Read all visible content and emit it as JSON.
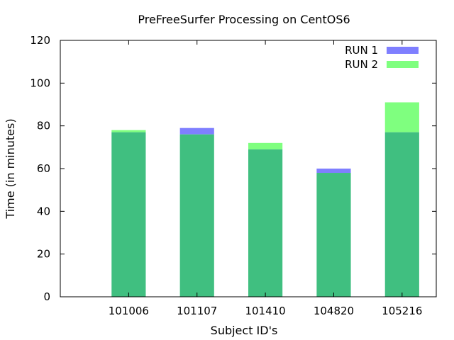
{
  "chart_data": {
    "type": "bar",
    "title": "PreFreeSurfer Processing on CentOS6",
    "xlabel": "Subject ID's",
    "ylabel": "Time (in minutes)",
    "ylim": [
      0,
      120
    ],
    "yticks": [
      0,
      20,
      40,
      60,
      80,
      100,
      120
    ],
    "categories": [
      "101006",
      "101107",
      "101410",
      "104820",
      "105216"
    ],
    "series": [
      {
        "name": "RUN 1",
        "color": "#7f7fff",
        "values": [
          77,
          79,
          69,
          60,
          77
        ]
      },
      {
        "name": "RUN 2",
        "color": "#7fff7f",
        "values": [
          78,
          76,
          72,
          58,
          91
        ]
      }
    ],
    "overlap_color": "#40bf80",
    "grid": false,
    "legend_position": "top-right"
  }
}
